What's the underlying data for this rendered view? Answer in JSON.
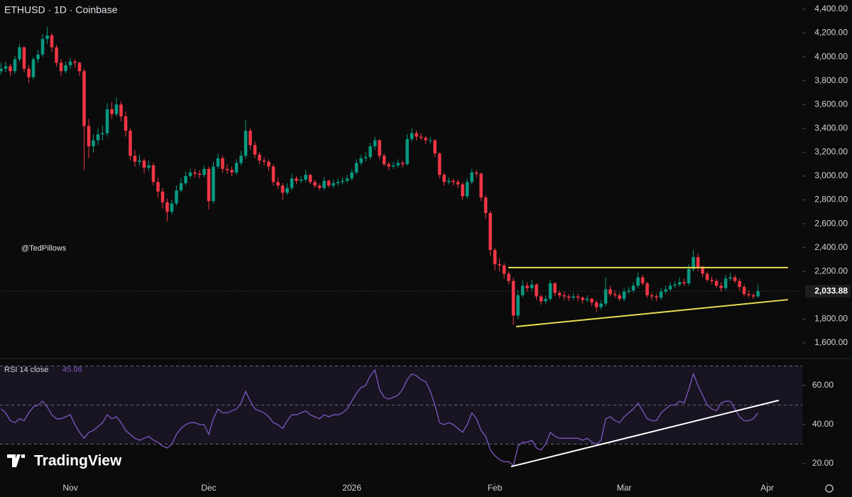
{
  "chart_data": {
    "type": "candlestick",
    "title": "ETHUSD · 1D · Coinbase",
    "watermark": "@TedPillows",
    "logo": "TradingView",
    "up_color": "#089981",
    "down_color": "#f23645",
    "candles": [
      [
        3880,
        3950,
        3850,
        3900
      ],
      [
        3900,
        3960,
        3870,
        3920
      ],
      [
        3920,
        3940,
        3840,
        3880
      ],
      [
        3880,
        4010,
        3860,
        3980
      ],
      [
        3980,
        4110,
        3960,
        4080
      ],
      [
        4080,
        4090,
        3870,
        3900
      ],
      [
        3900,
        3930,
        3780,
        3830
      ],
      [
        3830,
        4000,
        3810,
        3980
      ],
      [
        3980,
        4060,
        3950,
        4020
      ],
      [
        4020,
        4190,
        4000,
        4150
      ],
      [
        4150,
        4250,
        4110,
        4180
      ],
      [
        4180,
        4200,
        4040,
        4080
      ],
      [
        4080,
        4100,
        3920,
        3950
      ],
      [
        3950,
        3980,
        3840,
        3880
      ],
      [
        3880,
        3960,
        3860,
        3930
      ],
      [
        3930,
        3990,
        3900,
        3960
      ],
      [
        3960,
        3980,
        3910,
        3950
      ],
      [
        3950,
        3960,
        3840,
        3880
      ],
      [
        3880,
        3900,
        3050,
        3420
      ],
      [
        3420,
        3480,
        3150,
        3250
      ],
      [
        3250,
        3350,
        3200,
        3300
      ],
      [
        3300,
        3400,
        3260,
        3350
      ],
      [
        3350,
        3420,
        3300,
        3360
      ],
      [
        3360,
        3610,
        3330,
        3560
      ],
      [
        3560,
        3620,
        3480,
        3520
      ],
      [
        3520,
        3660,
        3500,
        3600
      ],
      [
        3600,
        3630,
        3460,
        3500
      ],
      [
        3500,
        3540,
        3330,
        3380
      ],
      [
        3380,
        3400,
        3130,
        3170
      ],
      [
        3170,
        3220,
        3080,
        3120
      ],
      [
        3120,
        3180,
        3090,
        3130
      ],
      [
        3130,
        3150,
        3020,
        3070
      ],
      [
        3070,
        3130,
        3040,
        3090
      ],
      [
        3090,
        3110,
        2920,
        2950
      ],
      [
        2950,
        2990,
        2820,
        2870
      ],
      [
        2870,
        2900,
        2730,
        2780
      ],
      [
        2780,
        2810,
        2620,
        2700
      ],
      [
        2700,
        2800,
        2680,
        2770
      ],
      [
        2770,
        2920,
        2750,
        2880
      ],
      [
        2880,
        2980,
        2860,
        2940
      ],
      [
        2940,
        3040,
        2920,
        3000
      ],
      [
        3000,
        3060,
        2980,
        3030
      ],
      [
        3030,
        3060,
        2990,
        3020
      ],
      [
        3020,
        3050,
        2980,
        3010
      ],
      [
        3010,
        3090,
        2990,
        3060
      ],
      [
        3060,
        3080,
        2720,
        2790
      ],
      [
        2790,
        3120,
        2770,
        3080
      ],
      [
        3080,
        3190,
        3060,
        3150
      ],
      [
        3150,
        3170,
        3030,
        3060
      ],
      [
        3060,
        3100,
        3020,
        3050
      ],
      [
        3050,
        3080,
        3000,
        3030
      ],
      [
        3030,
        3140,
        3010,
        3110
      ],
      [
        3110,
        3210,
        3090,
        3170
      ],
      [
        3170,
        3470,
        3150,
        3380
      ],
      [
        3380,
        3400,
        3220,
        3260
      ],
      [
        3260,
        3290,
        3150,
        3180
      ],
      [
        3180,
        3200,
        3100,
        3130
      ],
      [
        3130,
        3160,
        3090,
        3120
      ],
      [
        3120,
        3140,
        3040,
        3080
      ],
      [
        3080,
        3100,
        2920,
        2950
      ],
      [
        2950,
        2990,
        2890,
        2920
      ],
      [
        2920,
        2940,
        2800,
        2860
      ],
      [
        2860,
        2940,
        2840,
        2900
      ],
      [
        2900,
        3020,
        2880,
        2980
      ],
      [
        2980,
        3000,
        2930,
        2960
      ],
      [
        2960,
        3000,
        2940,
        2970
      ],
      [
        2970,
        3050,
        2950,
        3010
      ],
      [
        3010,
        3020,
        2930,
        2950
      ],
      [
        2950,
        2970,
        2900,
        2920
      ],
      [
        2920,
        2940,
        2880,
        2900
      ],
      [
        2900,
        2990,
        2880,
        2960
      ],
      [
        2960,
        2970,
        2900,
        2920
      ],
      [
        2920,
        2970,
        2900,
        2940
      ],
      [
        2940,
        2980,
        2920,
        2950
      ],
      [
        2950,
        2990,
        2930,
        2960
      ],
      [
        2960,
        3010,
        2940,
        2980
      ],
      [
        2980,
        3060,
        2960,
        3030
      ],
      [
        3030,
        3140,
        3010,
        3110
      ],
      [
        3110,
        3180,
        3090,
        3150
      ],
      [
        3150,
        3200,
        3120,
        3160
      ],
      [
        3160,
        3280,
        3140,
        3250
      ],
      [
        3250,
        3330,
        3220,
        3300
      ],
      [
        3300,
        3310,
        3140,
        3170
      ],
      [
        3170,
        3190,
        3080,
        3100
      ],
      [
        3100,
        3120,
        3050,
        3080
      ],
      [
        3080,
        3120,
        3060,
        3090
      ],
      [
        3090,
        3140,
        3070,
        3110
      ],
      [
        3110,
        3130,
        3070,
        3100
      ],
      [
        3100,
        3350,
        3090,
        3310
      ],
      [
        3310,
        3400,
        3290,
        3360
      ],
      [
        3360,
        3380,
        3300,
        3330
      ],
      [
        3330,
        3360,
        3300,
        3320
      ],
      [
        3320,
        3340,
        3270,
        3300
      ],
      [
        3300,
        3330,
        3270,
        3300
      ],
      [
        3300,
        3310,
        3160,
        3190
      ],
      [
        3190,
        3200,
        2980,
        3010
      ],
      [
        3010,
        3030,
        2920,
        2950
      ],
      [
        2950,
        2990,
        2930,
        2960
      ],
      [
        2960,
        2980,
        2920,
        2950
      ],
      [
        2950,
        2970,
        2900,
        2930
      ],
      [
        2930,
        2950,
        2800,
        2830
      ],
      [
        2830,
        2980,
        2810,
        2950
      ],
      [
        2950,
        3060,
        2930,
        3030
      ],
      [
        3030,
        3050,
        2990,
        3020
      ],
      [
        3020,
        3030,
        2790,
        2820
      ],
      [
        2820,
        2840,
        2640,
        2690
      ],
      [
        2690,
        2710,
        2330,
        2380
      ],
      [
        2380,
        2400,
        2210,
        2260
      ],
      [
        2260,
        2310,
        2200,
        2250
      ],
      [
        2250,
        2270,
        2140,
        2180
      ],
      [
        2180,
        2200,
        2090,
        2120
      ],
      [
        2120,
        2150,
        1750,
        1830
      ],
      [
        1830,
        2040,
        1800,
        2000
      ],
      [
        2000,
        2130,
        1980,
        2080
      ],
      [
        2080,
        2110,
        2030,
        2060
      ],
      [
        2060,
        2130,
        2040,
        2090
      ],
      [
        2090,
        2100,
        1960,
        1990
      ],
      [
        1990,
        2010,
        1920,
        1950
      ],
      [
        1950,
        2000,
        1930,
        1970
      ],
      [
        1970,
        2130,
        1950,
        2100
      ],
      [
        2100,
        2110,
        1990,
        2020
      ],
      [
        2020,
        2040,
        1970,
        2000
      ],
      [
        2000,
        2030,
        1960,
        1990
      ],
      [
        1990,
        2010,
        1950,
        1980
      ],
      [
        1980,
        2020,
        1960,
        1990
      ],
      [
        1990,
        2010,
        1950,
        1980
      ],
      [
        1980,
        1990,
        1930,
        1960
      ],
      [
        1960,
        2000,
        1940,
        1970
      ],
      [
        1970,
        1980,
        1910,
        1940
      ],
      [
        1940,
        1960,
        1860,
        1900
      ],
      [
        1900,
        1960,
        1880,
        1930
      ],
      [
        1930,
        2150,
        1910,
        2050
      ],
      [
        2050,
        2080,
        1990,
        2010
      ],
      [
        2010,
        2040,
        1980,
        2000
      ],
      [
        2000,
        2020,
        1950,
        1970
      ],
      [
        1970,
        2060,
        1950,
        2030
      ],
      [
        2030,
        2070,
        2010,
        2040
      ],
      [
        2040,
        2110,
        2020,
        2080
      ],
      [
        2080,
        2190,
        2060,
        2150
      ],
      [
        2150,
        2170,
        2080,
        2100
      ],
      [
        2100,
        2110,
        1980,
        2000
      ],
      [
        2000,
        2020,
        1960,
        1990
      ],
      [
        1990,
        2010,
        1950,
        1980
      ],
      [
        1980,
        2060,
        1960,
        2030
      ],
      [
        2030,
        2080,
        2010,
        2050
      ],
      [
        2050,
        2110,
        2030,
        2080
      ],
      [
        2080,
        2120,
        2060,
        2090
      ],
      [
        2090,
        2150,
        2070,
        2110
      ],
      [
        2110,
        2140,
        2080,
        2100
      ],
      [
        2100,
        2260,
        2080,
        2220
      ],
      [
        2220,
        2380,
        2200,
        2320
      ],
      [
        2320,
        2350,
        2200,
        2230
      ],
      [
        2230,
        2250,
        2150,
        2180
      ],
      [
        2180,
        2200,
        2110,
        2130
      ],
      [
        2130,
        2160,
        2090,
        2120
      ],
      [
        2120,
        2140,
        2060,
        2080
      ],
      [
        2080,
        2110,
        2030,
        2060
      ],
      [
        2060,
        2170,
        2040,
        2140
      ],
      [
        2140,
        2190,
        2120,
        2150
      ],
      [
        2150,
        2170,
        2100,
        2120
      ],
      [
        2120,
        2140,
        2040,
        2070
      ],
      [
        2070,
        2090,
        1990,
        2010
      ],
      [
        2010,
        2040,
        1980,
        2000
      ],
      [
        2000,
        2020,
        1970,
        1990
      ],
      [
        1990,
        2090,
        1980,
        2033.88
      ]
    ],
    "last_label": "2,033.88",
    "xlim": [
      -0.23,
      173.6
    ],
    "xticks": [
      {
        "value": 15,
        "label": "Nov"
      },
      {
        "value": 45,
        "label": "Dec"
      },
      {
        "value": 76,
        "label": "2026"
      },
      {
        "value": 107,
        "label": "Feb"
      },
      {
        "value": 135,
        "label": "Mar"
      },
      {
        "value": 166,
        "label": "Apr"
      }
    ],
    "ylim": [
      1469,
      4477
    ],
    "yticks": [
      {
        "value": 4400,
        "label": "4,400.00"
      },
      {
        "value": 4200,
        "label": "4,200.00"
      },
      {
        "value": 4000,
        "label": "4,000.00"
      },
      {
        "value": 3800,
        "label": "3,800.00"
      },
      {
        "value": 3600,
        "label": "3,600.00"
      },
      {
        "value": 3400,
        "label": "3,400.00"
      },
      {
        "value": 3200,
        "label": "3,200.00"
      },
      {
        "value": 3000,
        "label": "3,000.00"
      },
      {
        "value": 2800,
        "label": "2,800.00"
      },
      {
        "value": 2600,
        "label": "2,600.00"
      },
      {
        "value": 2400,
        "label": "2,400.00"
      },
      {
        "value": 2200,
        "label": "2,200.00"
      },
      {
        "value": 1800,
        "label": "1,800.00"
      },
      {
        "value": 1600,
        "label": "1,600.00"
      }
    ],
    "trendlines": [
      {
        "color": "#e8dc4f",
        "points": [
          [
            109.9,
            2232
          ],
          [
            170.5,
            2232
          ]
        ]
      },
      {
        "color": "#e8dc4f",
        "points": [
          [
            111.6,
            1737
          ],
          [
            170.5,
            1963
          ]
        ]
      }
    ],
    "rsi": {
      "title": "RSI 14 close",
      "color": "#7e57c2",
      "values": [
        48,
        46,
        42,
        41,
        43,
        42,
        46,
        49,
        50,
        52,
        49,
        45,
        43,
        43,
        44,
        45,
        40,
        36,
        33,
        36,
        37,
        39,
        41,
        45,
        43,
        44,
        41,
        37,
        35,
        33,
        32,
        33,
        34,
        32,
        31,
        29,
        28,
        30,
        35,
        38,
        40,
        41,
        41,
        40,
        40,
        35,
        43,
        48,
        46,
        46,
        47,
        48,
        51,
        57,
        52,
        48,
        47,
        46,
        44,
        41,
        40,
        38,
        42,
        45,
        45,
        46,
        47,
        45,
        44,
        43,
        45,
        44,
        45,
        45,
        46,
        48,
        52,
        56,
        59,
        60,
        65,
        68,
        58,
        54,
        53,
        54,
        55,
        58,
        63,
        66,
        65,
        63,
        62,
        57,
        50,
        41,
        40,
        41,
        40,
        38,
        36,
        40,
        46,
        43,
        37,
        34,
        27,
        24,
        22,
        21,
        21,
        19,
        29,
        31,
        31,
        32,
        28,
        27,
        30,
        36,
        34,
        33,
        33,
        33,
        33,
        33,
        32,
        33,
        31,
        30,
        32,
        43,
        44,
        42,
        41,
        44,
        46,
        48,
        51,
        47,
        43,
        42,
        42,
        46,
        48,
        50,
        50,
        52,
        51,
        58,
        66,
        60,
        55,
        50,
        48,
        47,
        51,
        52,
        52,
        48,
        44,
        42,
        42,
        43,
        45.98
      ],
      "ylim": [
        10.2,
        73.8
      ],
      "yticks": [
        {
          "value": 60,
          "label": "60.00"
        },
        {
          "value": 40,
          "label": "40.00"
        },
        {
          "value": 20,
          "label": "20.00"
        }
      ],
      "bands": [
        70,
        50,
        30
      ],
      "trendline": {
        "color": "#ffffff",
        "points": [
          [
            110.5,
            18.5
          ],
          [
            168.5,
            52.4
          ]
        ]
      }
    }
  }
}
